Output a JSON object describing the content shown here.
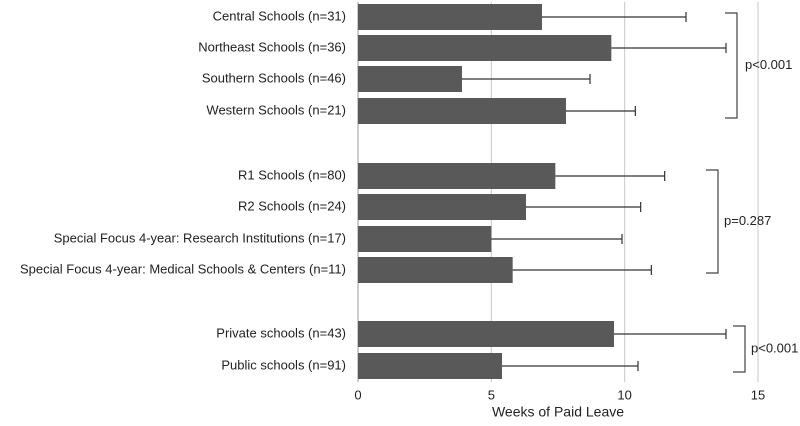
{
  "chart_data": {
    "type": "bar",
    "orientation": "horizontal",
    "categories": [
      "Central Schools (n=31)",
      "Northeast Schools (n=36)",
      "Southern Schools (n=46)",
      "Western Schools (n=21)",
      "R1 Schools (n=80)",
      "R2 Schools (n=24)",
      "Special Focus 4-year: Research Institutions (n=17)",
      "Special Focus 4-year: Medical Schools & Centers (n=11)",
      "Private schools (n=43)",
      "Public schools (n=91)"
    ],
    "values": [
      6.9,
      9.5,
      3.9,
      7.8,
      7.4,
      6.3,
      5.0,
      5.8,
      9.6,
      5.4
    ],
    "errors": [
      5.4,
      4.3,
      4.8,
      2.6,
      4.1,
      4.3,
      4.9,
      5.2,
      4.2,
      5.1
    ],
    "color": "#595959",
    "xlabel": "Weeks of Paid Leave",
    "xlim": [
      0,
      15
    ],
    "xticks": [
      0,
      5,
      10,
      15
    ],
    "grid": true,
    "annotations": [
      "p<0.001",
      "p=0.287",
      "p<0.001"
    ]
  }
}
